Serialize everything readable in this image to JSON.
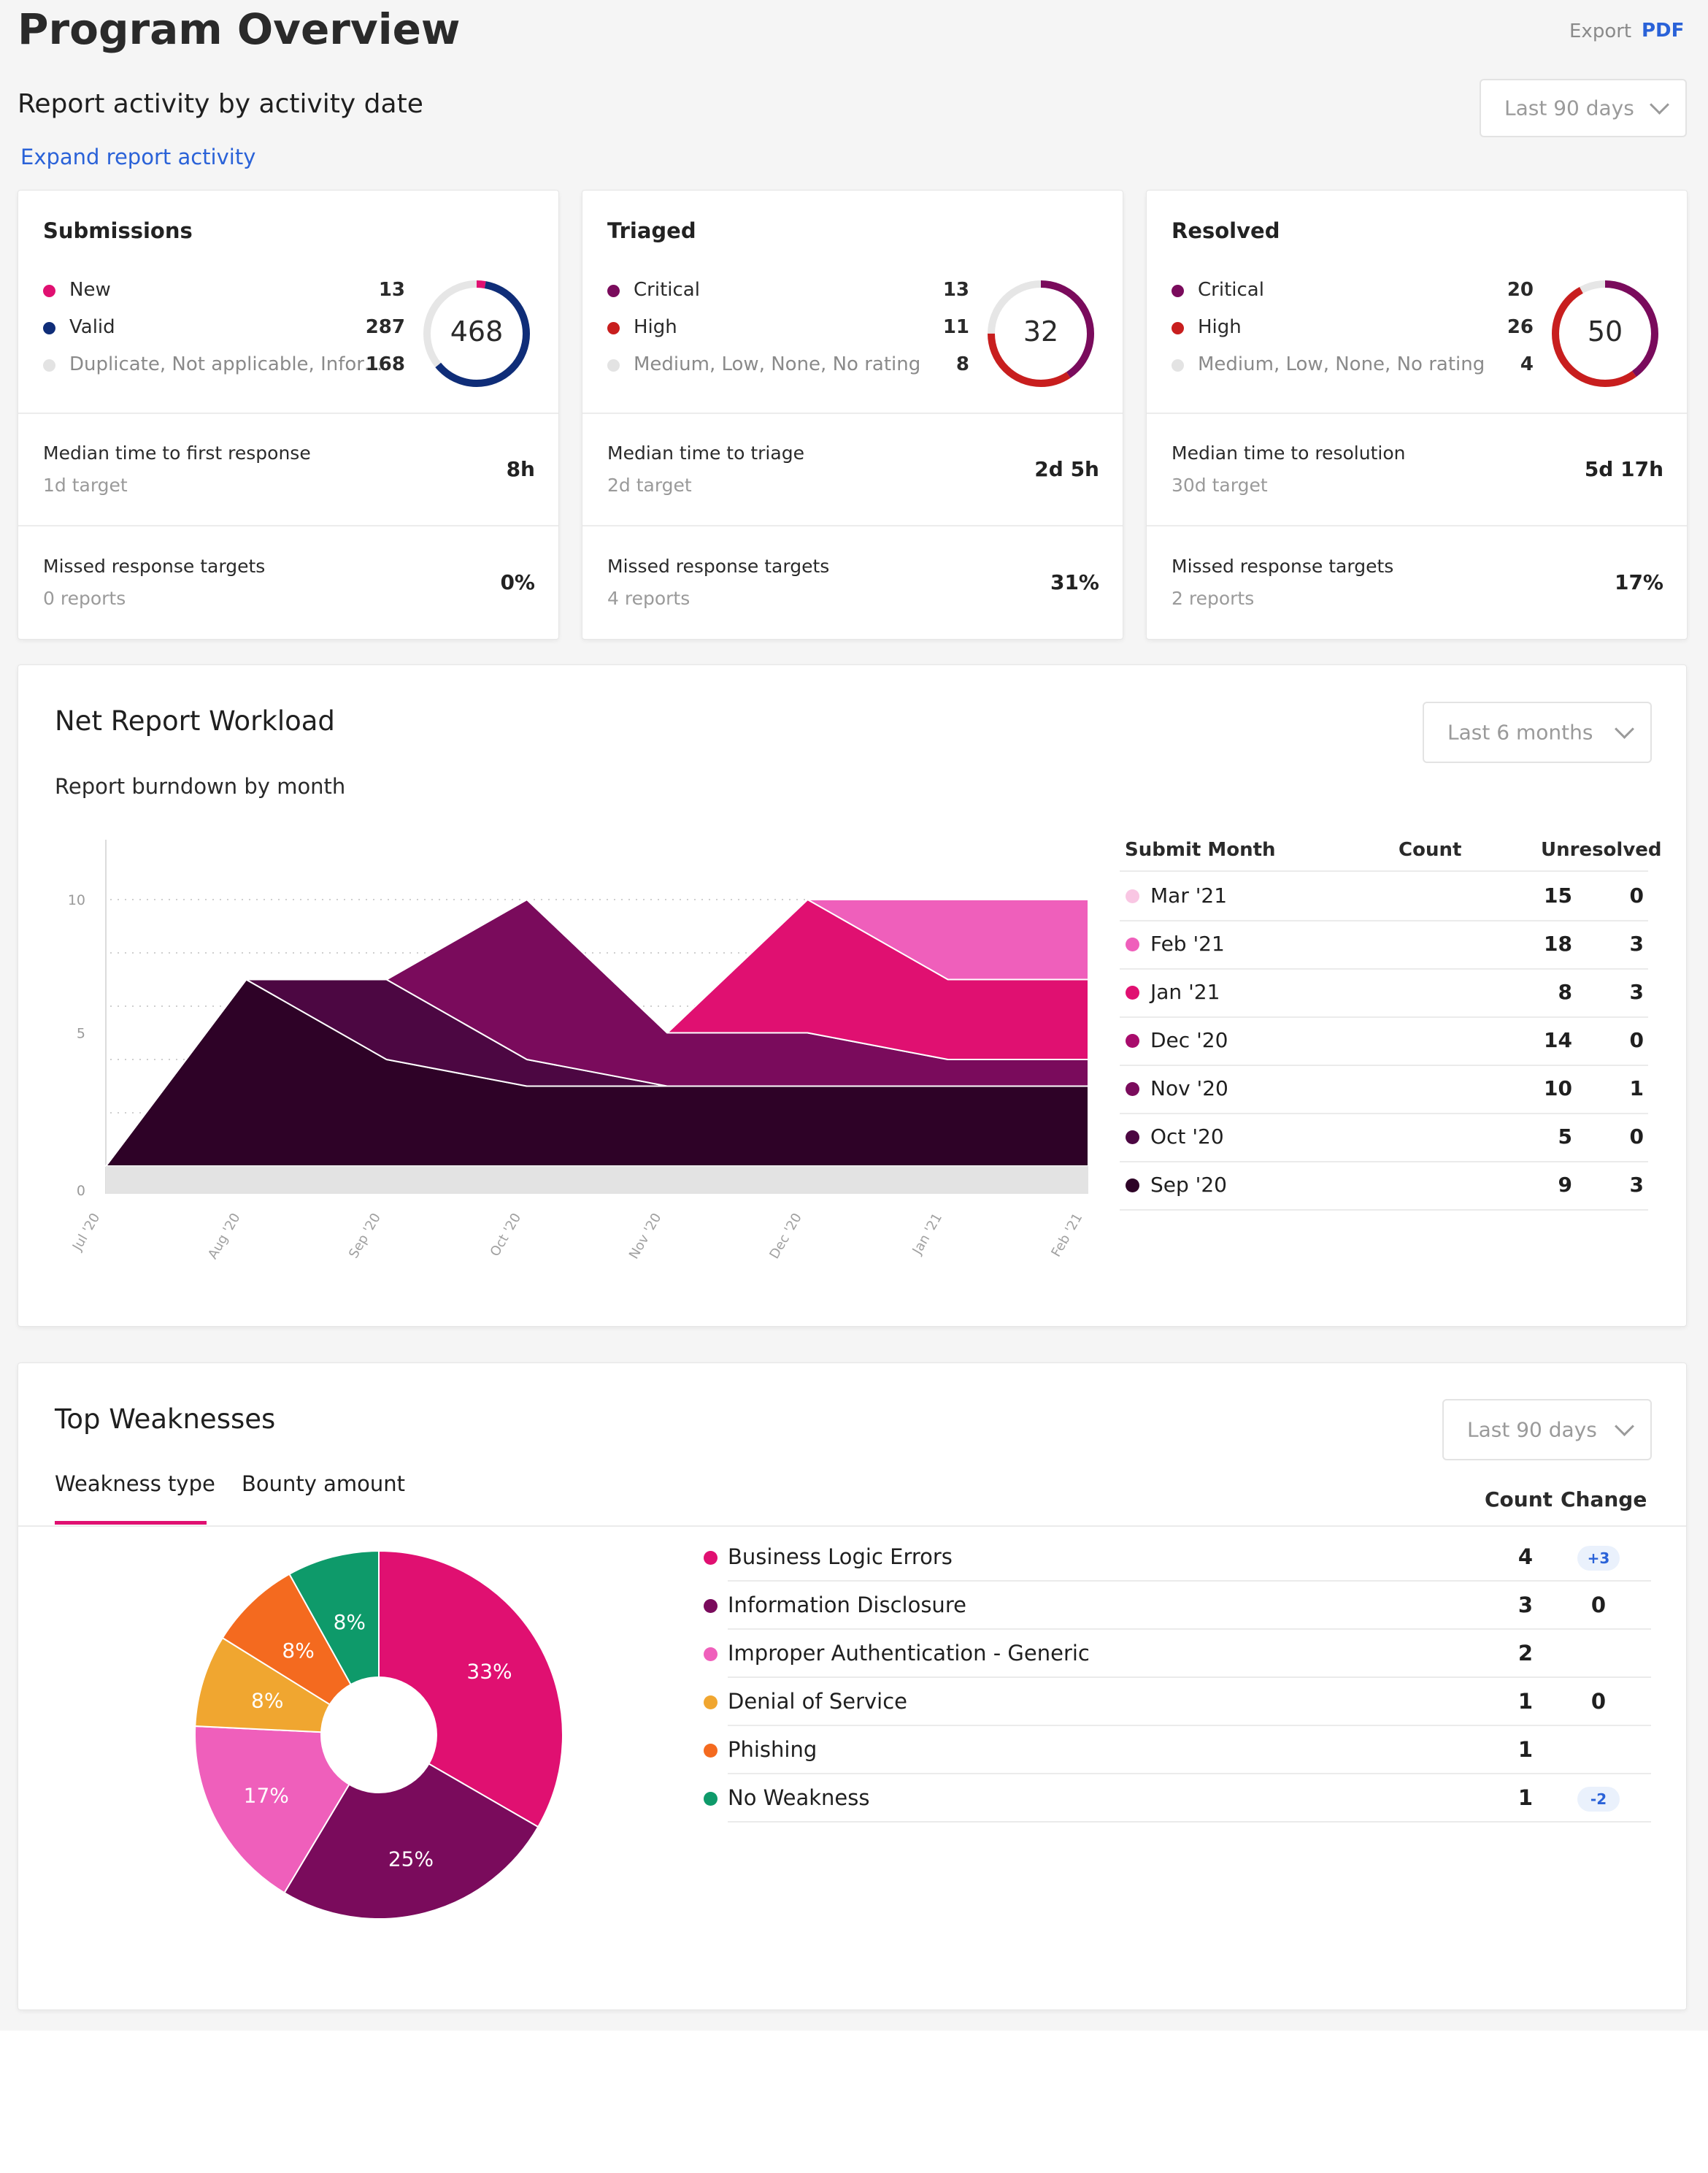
{
  "page": {
    "title": "Program Overview",
    "export_label": "Export",
    "export_pdf": "PDF"
  },
  "activity": {
    "heading": "Report activity by activity date",
    "expand_link": "Expand report activity",
    "range": "Last 90 days"
  },
  "cards": [
    {
      "title": "Submissions",
      "total": "468",
      "legend": [
        {
          "name": "New",
          "value": "13",
          "color": "#e01071"
        },
        {
          "name": "Valid",
          "value": "287",
          "color": "#0f2d78"
        },
        {
          "name": "Duplicate, Not applicable, Informative",
          "value": "168",
          "color": "#e3e3e3"
        }
      ],
      "median_label": "Median time to first response",
      "median_target": "1d target",
      "median_value": "8h",
      "missed_label": "Missed response targets",
      "missed_sub": "0 reports",
      "missed_value": "0%"
    },
    {
      "title": "Triaged",
      "total": "32",
      "legend": [
        {
          "name": "Critical",
          "value": "13",
          "color": "#7a0b5c"
        },
        {
          "name": "High",
          "value": "11",
          "color": "#c81e1e"
        },
        {
          "name": "Medium, Low, None, No rating",
          "value": "8",
          "color": "#e3e3e3"
        }
      ],
      "median_label": "Median time to triage",
      "median_target": "2d target",
      "median_value": "2d 5h",
      "missed_label": "Missed response targets",
      "missed_sub": "4 reports",
      "missed_value": "31%"
    },
    {
      "title": "Resolved",
      "total": "50",
      "legend": [
        {
          "name": "Critical",
          "value": "20",
          "color": "#7a0b5c"
        },
        {
          "name": "High",
          "value": "26",
          "color": "#c81e1e"
        },
        {
          "name": "Medium, Low, None, No rating",
          "value": "4",
          "color": "#e3e3e3"
        }
      ],
      "median_label": "Median time to resolution",
      "median_target": "30d target",
      "median_value": "5d 17h",
      "missed_label": "Missed response targets",
      "missed_sub": "2 reports",
      "missed_value": "17%"
    }
  ],
  "workload": {
    "title": "Net Report Workload",
    "subtitle": "Report burndown by month",
    "range": "Last 6 months",
    "table_headers": {
      "month": "Submit Month",
      "count": "Count",
      "unresolved": "Unresolved"
    },
    "table": [
      {
        "month": "Mar '21",
        "count": "15",
        "unresolved": "0",
        "color": "#f9c6e3"
      },
      {
        "month": "Feb '21",
        "count": "18",
        "unresolved": "3",
        "color": "#ef5fbb"
      },
      {
        "month": "Jan '21",
        "count": "8",
        "unresolved": "3",
        "color": "#e01071"
      },
      {
        "month": "Dec '20",
        "count": "14",
        "unresolved": "0",
        "color": "#a80c6c"
      },
      {
        "month": "Nov '20",
        "count": "10",
        "unresolved": "1",
        "color": "#7a0b5c"
      },
      {
        "month": "Oct '20",
        "count": "5",
        "unresolved": "0",
        "color": "#4c0742"
      },
      {
        "month": "Sep '20",
        "count": "9",
        "unresolved": "3",
        "color": "#2e0227"
      }
    ]
  },
  "chart_data": {
    "type": "area",
    "x": [
      "Jul '20",
      "Aug '20",
      "Sep '20",
      "Oct '20",
      "Nov '20",
      "Dec '20",
      "Jan '21",
      "Feb '21"
    ],
    "y_ticks": [
      "0",
      "5",
      "10"
    ],
    "ylim": [
      0,
      12
    ],
    "stacked": true,
    "series": [
      {
        "values": [
          0,
          7,
          4,
          3,
          3,
          3,
          3,
          3
        ],
        "color": "#2e0227"
      },
      {
        "values": [
          0,
          0,
          3,
          1,
          0,
          0,
          0,
          0
        ],
        "color": "#4c0742"
      },
      {
        "values": [
          0,
          0,
          0,
          6,
          2,
          2,
          1,
          1
        ],
        "color": "#7a0b5c"
      },
      {
        "values": [
          0,
          0,
          0,
          0,
          0,
          5,
          3,
          3
        ],
        "color": "#e01071"
      },
      {
        "values": [
          0,
          0,
          0,
          0,
          0,
          0,
          3,
          3
        ],
        "color": "#ef5fbb"
      }
    ]
  },
  "weaknesses": {
    "title": "Top Weaknesses",
    "range": "Last 90 days",
    "tabs": [
      "Weakness type",
      "Bounty amount"
    ],
    "headers": {
      "count": "Count",
      "change": "Change"
    },
    "rows": [
      {
        "name": "Business Logic Errors",
        "count": "4",
        "change": "+3",
        "pill": true,
        "color": "#e01071"
      },
      {
        "name": "Information Disclosure",
        "count": "3",
        "change": "0",
        "pill": false,
        "color": "#7a0b5c"
      },
      {
        "name": "Improper Authentication - Generic",
        "count": "2",
        "change": "",
        "pill": false,
        "color": "#ef5fbb"
      },
      {
        "name": "Denial of Service",
        "count": "1",
        "change": "0",
        "pill": false,
        "color": "#f0a630"
      },
      {
        "name": "Phishing",
        "count": "1",
        "change": "",
        "pill": false,
        "color": "#f46a1f"
      },
      {
        "name": "No Weakness",
        "count": "1",
        "change": "-2",
        "pill": true,
        "color": "#0e9a6a"
      }
    ],
    "pie": [
      {
        "label": "33%",
        "value": 33,
        "color": "#e01071"
      },
      {
        "label": "25%",
        "value": 25,
        "color": "#7a0b5c"
      },
      {
        "label": "17%",
        "value": 17,
        "color": "#ef5fbb"
      },
      {
        "label": "8%",
        "value": 8,
        "color": "#f0a630"
      },
      {
        "label": "8%",
        "value": 8,
        "color": "#f46a1f"
      },
      {
        "label": "8%",
        "value": 8,
        "color": "#0e9a6a"
      }
    ]
  }
}
